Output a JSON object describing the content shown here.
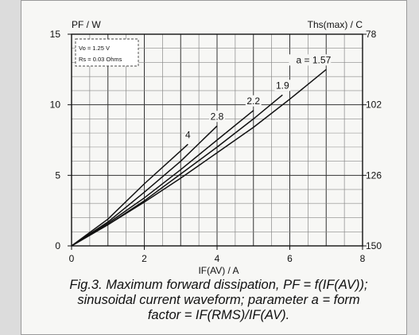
{
  "chart_data": {
    "type": "line",
    "x_label": "IF(AV) / A",
    "y_left_label": "PF / W",
    "y_right_label": "Ths(max) / C",
    "x_ticks": [
      "0",
      "2",
      "4",
      "6",
      "8"
    ],
    "y_left_ticks": [
      "0",
      "5",
      "10",
      "15"
    ],
    "y_right_ticks": [
      "150",
      "126",
      "102",
      "78"
    ],
    "xlim": [
      0,
      8
    ],
    "ylim": [
      0,
      15
    ],
    "y_right_values": [
      150,
      126,
      102,
      78
    ],
    "grid": true,
    "params": {
      "vo": "Vo = 1.25 V",
      "rs": "Rs = 0.03 Ohms"
    },
    "series": [
      {
        "label": "4",
        "x": [
          0,
          1,
          2,
          3.2
        ],
        "y": [
          0,
          1.9,
          4.4,
          7.2
        ]
      },
      {
        "label": "2.8",
        "x": [
          0,
          1,
          2,
          3,
          4
        ],
        "y": [
          0,
          1.7,
          3.8,
          6.0,
          8.5
        ]
      },
      {
        "label": "2.2",
        "x": [
          0,
          1,
          2,
          3,
          4,
          5
        ],
        "y": [
          0,
          1.6,
          3.4,
          5.4,
          7.5,
          9.6
        ]
      },
      {
        "label": "1.9",
        "x": [
          0,
          1,
          2,
          3,
          4,
          5,
          5.8
        ],
        "y": [
          0,
          1.5,
          3.2,
          5.1,
          7.0,
          9.0,
          10.7
        ]
      },
      {
        "label": "a = 1.57",
        "x": [
          0,
          1,
          2,
          3,
          4,
          5,
          6,
          7
        ],
        "y": [
          0,
          1.5,
          3.1,
          4.8,
          6.6,
          8.4,
          10.4,
          12.5
        ]
      }
    ]
  },
  "caption": {
    "line1": "Fig.3.  Maximum forward dissipation, PF = f(IF(AV));",
    "line2": "sinusoidal current waveform; parameter a = form",
    "line3": "factor = IF(RMS)/IF(AV)."
  }
}
